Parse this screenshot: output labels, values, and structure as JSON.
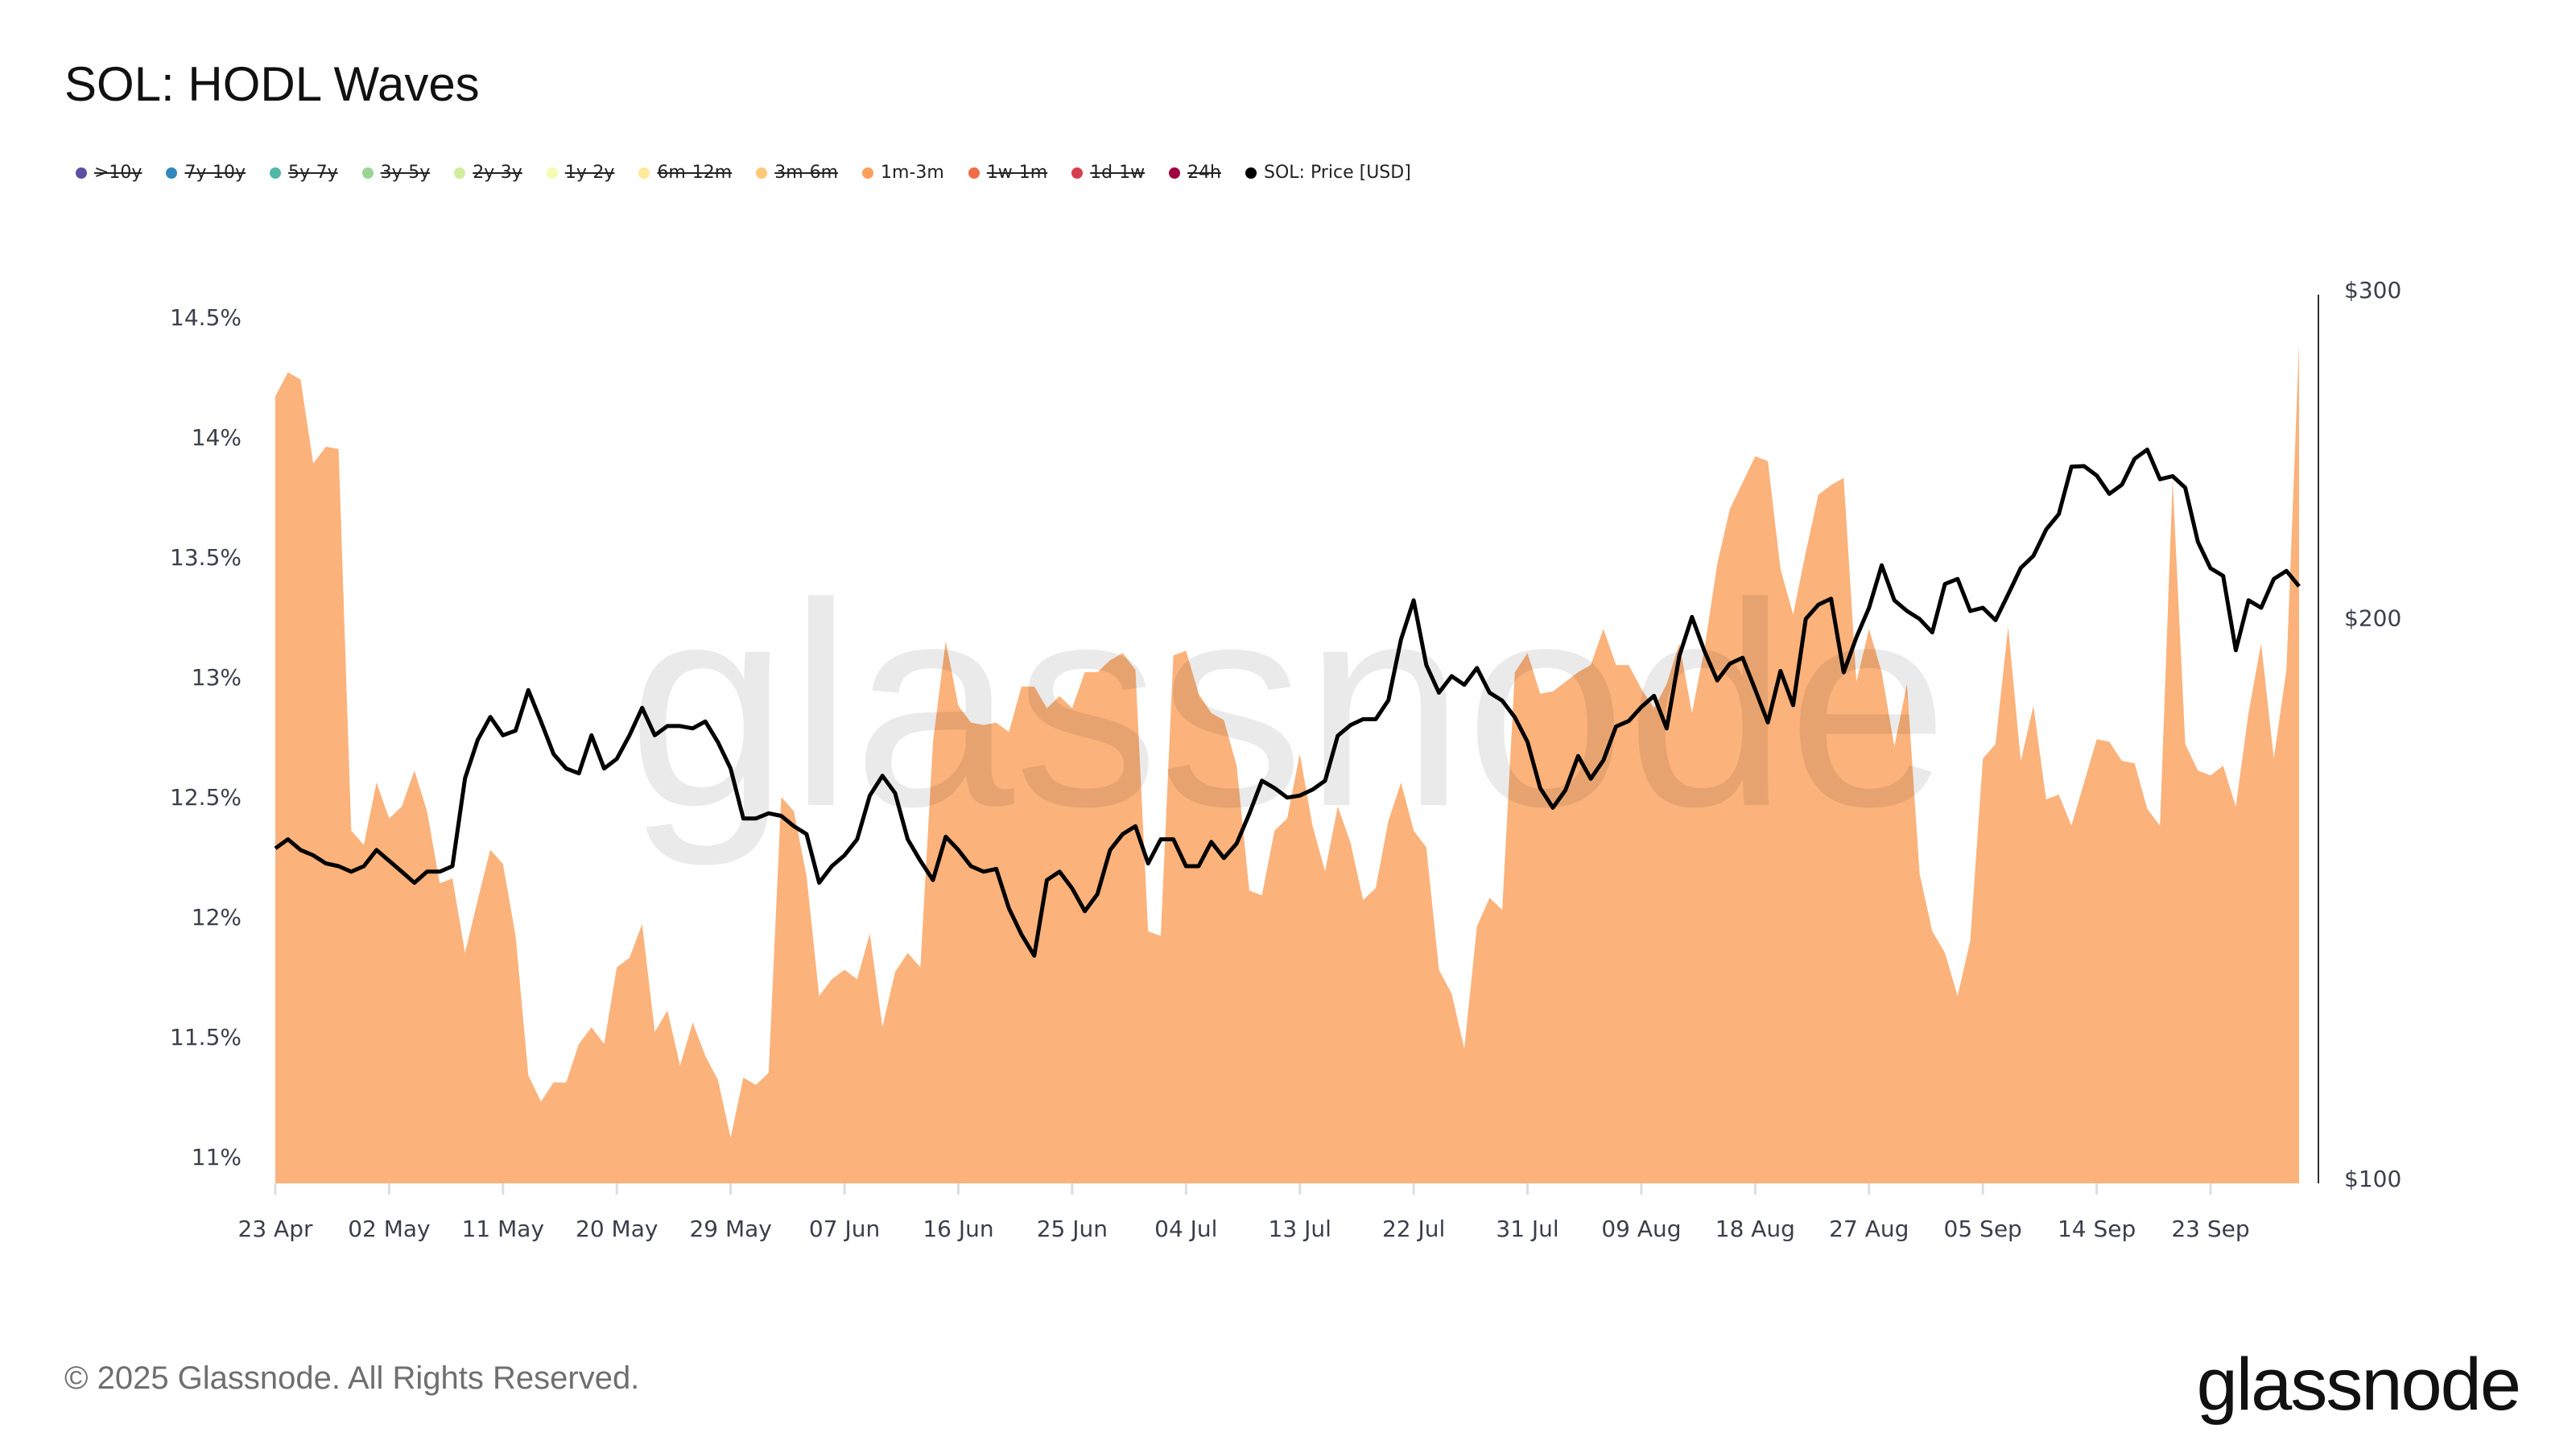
{
  "title": "SOL: HODL Waves",
  "legend": [
    {
      "label": ">10y",
      "color": "#5e4fa2",
      "active": false
    },
    {
      "label": "7y-10y",
      "color": "#3288bd",
      "active": false
    },
    {
      "label": "5y-7y",
      "color": "#4fb8a8",
      "active": false
    },
    {
      "label": "3y-5y",
      "color": "#99d594",
      "active": false
    },
    {
      "label": "2y-3y",
      "color": "#d1ec9c",
      "active": false
    },
    {
      "label": "1y-2y",
      "color": "#f5fbb0",
      "active": false
    },
    {
      "label": "6m-12m",
      "color": "#fee89a",
      "active": false
    },
    {
      "label": "3m-6m",
      "color": "#fdc978",
      "active": false
    },
    {
      "label": "1m-3m",
      "color": "#fc9f5b",
      "active": true
    },
    {
      "label": "1w-1m",
      "color": "#f06c45",
      "active": false
    },
    {
      "label": "1d-1w",
      "color": "#d53e4f",
      "active": false
    },
    {
      "label": "24h",
      "color": "#9e0142",
      "active": false
    },
    {
      "label": "SOL: Price [USD]",
      "color": "#000000",
      "active": true
    }
  ],
  "watermark": "glassnode",
  "footer": {
    "copyright": "© 2025 Glassnode. All Rights Reserved.",
    "logo": "glassnode"
  },
  "chart_data": {
    "type": "area",
    "title": "SOL: HODL Waves",
    "x_tick_labels": [
      "23 Apr",
      "02 May",
      "11 May",
      "20 May",
      "29 May",
      "07 Jun",
      "16 Jun",
      "25 Jun",
      "04 Jul",
      "13 Jul",
      "22 Jul",
      "31 Jul",
      "09 Aug",
      "18 Aug",
      "27 Aug",
      "05 Sep",
      "14 Sep",
      "23 Sep"
    ],
    "y_left": {
      "tick_labels": [
        "11%",
        "11.5%",
        "12%",
        "12.5%",
        "13%",
        "13.5%",
        "14%",
        "14.5%"
      ],
      "ticks": [
        11,
        11.5,
        12,
        12.5,
        13,
        13.5,
        14,
        14.5
      ],
      "range": [
        10.89,
        14.59
      ],
      "unit": "%"
    },
    "y_right": {
      "tick_labels": [
        "$100",
        "$200",
        "$300"
      ],
      "ticks": [
        100,
        200,
        300
      ],
      "range": [
        100,
        300
      ],
      "scale": "log"
    },
    "grid": false,
    "legend_position": "top-left",
    "x": [
      "2025-04-23",
      "2025-04-24",
      "2025-04-25",
      "2025-04-26",
      "2025-04-27",
      "2025-04-28",
      "2025-04-29",
      "2025-04-30",
      "2025-05-01",
      "2025-05-02",
      "2025-05-03",
      "2025-05-04",
      "2025-05-05",
      "2025-05-06",
      "2025-05-07",
      "2025-05-08",
      "2025-05-09",
      "2025-05-10",
      "2025-05-11",
      "2025-05-12",
      "2025-05-13",
      "2025-05-14",
      "2025-05-15",
      "2025-05-16",
      "2025-05-17",
      "2025-05-18",
      "2025-05-19",
      "2025-05-20",
      "2025-05-21",
      "2025-05-22",
      "2025-05-23",
      "2025-05-24",
      "2025-05-25",
      "2025-05-26",
      "2025-05-27",
      "2025-05-28",
      "2025-05-29",
      "2025-05-30",
      "2025-05-31",
      "2025-06-01",
      "2025-06-02",
      "2025-06-03",
      "2025-06-04",
      "2025-06-05",
      "2025-06-06",
      "2025-06-07",
      "2025-06-08",
      "2025-06-09",
      "2025-06-10",
      "2025-06-11",
      "2025-06-12",
      "2025-06-13",
      "2025-06-14",
      "2025-06-15",
      "2025-06-16",
      "2025-06-17",
      "2025-06-18",
      "2025-06-19",
      "2025-06-20",
      "2025-06-21",
      "2025-06-22",
      "2025-06-23",
      "2025-06-24",
      "2025-06-25",
      "2025-06-26",
      "2025-06-27",
      "2025-06-28",
      "2025-06-29",
      "2025-06-30",
      "2025-07-01",
      "2025-07-02",
      "2025-07-03",
      "2025-07-04",
      "2025-07-05",
      "2025-07-06",
      "2025-07-07",
      "2025-07-08",
      "2025-07-09",
      "2025-07-10",
      "2025-07-11",
      "2025-07-12",
      "2025-07-13",
      "2025-07-14",
      "2025-07-15",
      "2025-07-16",
      "2025-07-17",
      "2025-07-18",
      "2025-07-19",
      "2025-07-20",
      "2025-07-21",
      "2025-07-22",
      "2025-07-23",
      "2025-07-24",
      "2025-07-25",
      "2025-07-26",
      "2025-07-27",
      "2025-07-28",
      "2025-07-29",
      "2025-07-30",
      "2025-07-31",
      "2025-08-01",
      "2025-08-02",
      "2025-08-03",
      "2025-08-04",
      "2025-08-05",
      "2025-08-06",
      "2025-08-07",
      "2025-08-08",
      "2025-08-09",
      "2025-08-10",
      "2025-08-11",
      "2025-08-12",
      "2025-08-13",
      "2025-08-14",
      "2025-08-15",
      "2025-08-16",
      "2025-08-17",
      "2025-08-18",
      "2025-08-19",
      "2025-08-20",
      "2025-08-21",
      "2025-08-22",
      "2025-08-23",
      "2025-08-24",
      "2025-08-25",
      "2025-08-26",
      "2025-08-27",
      "2025-08-28",
      "2025-08-29",
      "2025-08-30",
      "2025-08-31",
      "2025-09-01",
      "2025-09-02",
      "2025-09-03",
      "2025-09-04",
      "2025-09-05",
      "2025-09-06",
      "2025-09-07",
      "2025-09-08",
      "2025-09-09",
      "2025-09-10",
      "2025-09-11",
      "2025-09-12",
      "2025-09-13",
      "2025-09-14",
      "2025-09-15",
      "2025-09-16",
      "2025-09-17",
      "2025-09-18",
      "2025-09-19",
      "2025-09-20",
      "2025-09-21",
      "2025-09-22",
      "2025-09-23",
      "2025-09-24",
      "2025-09-25",
      "2025-09-26",
      "2025-09-27",
      "2025-09-28",
      "2025-09-29",
      "2025-09-30"
    ],
    "series": [
      {
        "name": "1m-3m",
        "axis": "left",
        "type": "area",
        "color": "#fbb27b",
        "values": [
          14.17,
          14.27,
          14.24,
          13.89,
          13.96,
          13.95,
          12.36,
          12.3,
          12.56,
          12.41,
          12.46,
          12.61,
          12.44,
          12.14,
          12.16,
          11.85,
          12.07,
          12.28,
          12.22,
          11.92,
          11.34,
          11.23,
          11.31,
          11.31,
          11.47,
          11.54,
          11.47,
          11.79,
          11.83,
          11.97,
          11.52,
          11.61,
          11.38,
          11.56,
          11.42,
          11.32,
          11.08,
          11.33,
          11.3,
          11.35,
          12.5,
          12.44,
          12.17,
          11.67,
          11.74,
          11.78,
          11.74,
          11.93,
          11.54,
          11.77,
          11.85,
          11.79,
          12.73,
          13.15,
          12.88,
          12.81,
          12.8,
          12.81,
          12.77,
          12.96,
          12.96,
          12.87,
          12.92,
          12.87,
          13.02,
          13.02,
          13.07,
          13.1,
          13.03,
          11.94,
          11.92,
          13.09,
          13.11,
          12.93,
          12.85,
          12.82,
          12.63,
          12.11,
          12.09,
          12.36,
          12.41,
          12.68,
          12.38,
          12.19,
          12.46,
          12.31,
          12.07,
          12.12,
          12.4,
          12.56,
          12.36,
          12.29,
          11.78,
          11.68,
          11.45,
          11.96,
          12.08,
          12.03,
          13.02,
          13.1,
          12.93,
          12.94,
          12.98,
          13.02,
          13.05,
          13.2,
          13.05,
          13.05,
          12.95,
          12.87,
          12.97,
          13.14,
          12.85,
          13.12,
          13.47,
          13.7,
          13.81,
          13.92,
          13.9,
          13.45,
          13.26,
          13.52,
          13.76,
          13.8,
          13.83,
          12.98,
          13.2,
          13.02,
          12.71,
          12.97,
          12.18,
          11.94,
          11.85,
          11.67,
          11.9,
          12.66,
          12.72,
          13.21,
          12.65,
          12.88,
          12.49,
          12.51,
          12.38,
          12.56,
          12.74,
          12.73,
          12.65,
          12.64,
          12.45,
          12.38,
          13.82,
          12.72,
          12.61,
          12.59,
          12.63,
          12.46,
          12.85,
          13.14,
          12.66,
          13.03,
          14.39
        ]
      },
      {
        "name": "SOL: Price [USD]",
        "axis": "right",
        "type": "line",
        "color": "#000000",
        "values": [
          151.3,
          153,
          151,
          150,
          148.5,
          148,
          147,
          148,
          151,
          149,
          147,
          145,
          147,
          147,
          148,
          165,
          173,
          178,
          174,
          175,
          184,
          177,
          170,
          167,
          166,
          174,
          167,
          169,
          174,
          180,
          174,
          176,
          176,
          175.5,
          177,
          172.5,
          167,
          157,
          157,
          158,
          157.5,
          155.5,
          154,
          145,
          148,
          150,
          153,
          161.5,
          165.5,
          162,
          153,
          149,
          145.5,
          153.5,
          151,
          148,
          147,
          147.5,
          140.5,
          136,
          132.5,
          145.5,
          147,
          144,
          140,
          143,
          151,
          154,
          155.5,
          148.5,
          153,
          153,
          148,
          148,
          152.5,
          149.5,
          152.2,
          157.9,
          164.5,
          163,
          161.1,
          161.5,
          162.7,
          164.5,
          173.9,
          176.2,
          177.5,
          177.5,
          181.7,
          195.9,
          205.6,
          189.8,
          183.4,
          187.2,
          185.2,
          189.1,
          183.4,
          181.6,
          177.9,
          172.6,
          163,
          159.1,
          162.6,
          169.6,
          164.9,
          168.7,
          175.9,
          177.1,
          180.2,
          182.7,
          175.5,
          191.9,
          201.4,
          193,
          186.2,
          190.1,
          191.5,
          184.1,
          176.8,
          188.4,
          180.6,
          200.9,
          204.5,
          206,
          188.1,
          196.4,
          203.7,
          214.7,
          205.6,
          202.9,
          200.9,
          197.6,
          209.8,
          211.1,
          202.9,
          203.7,
          200.6,
          207.1,
          214,
          217.2,
          224.4,
          228.7,
          242.5,
          242.7,
          239.9,
          234.5,
          237.2,
          244.9,
          247.7,
          238.8,
          239.7,
          236.3,
          221,
          213.9,
          211.9,
          193.3,
          205.6,
          203.7,
          211.1,
          213.2,
          209.2
        ]
      }
    ]
  }
}
